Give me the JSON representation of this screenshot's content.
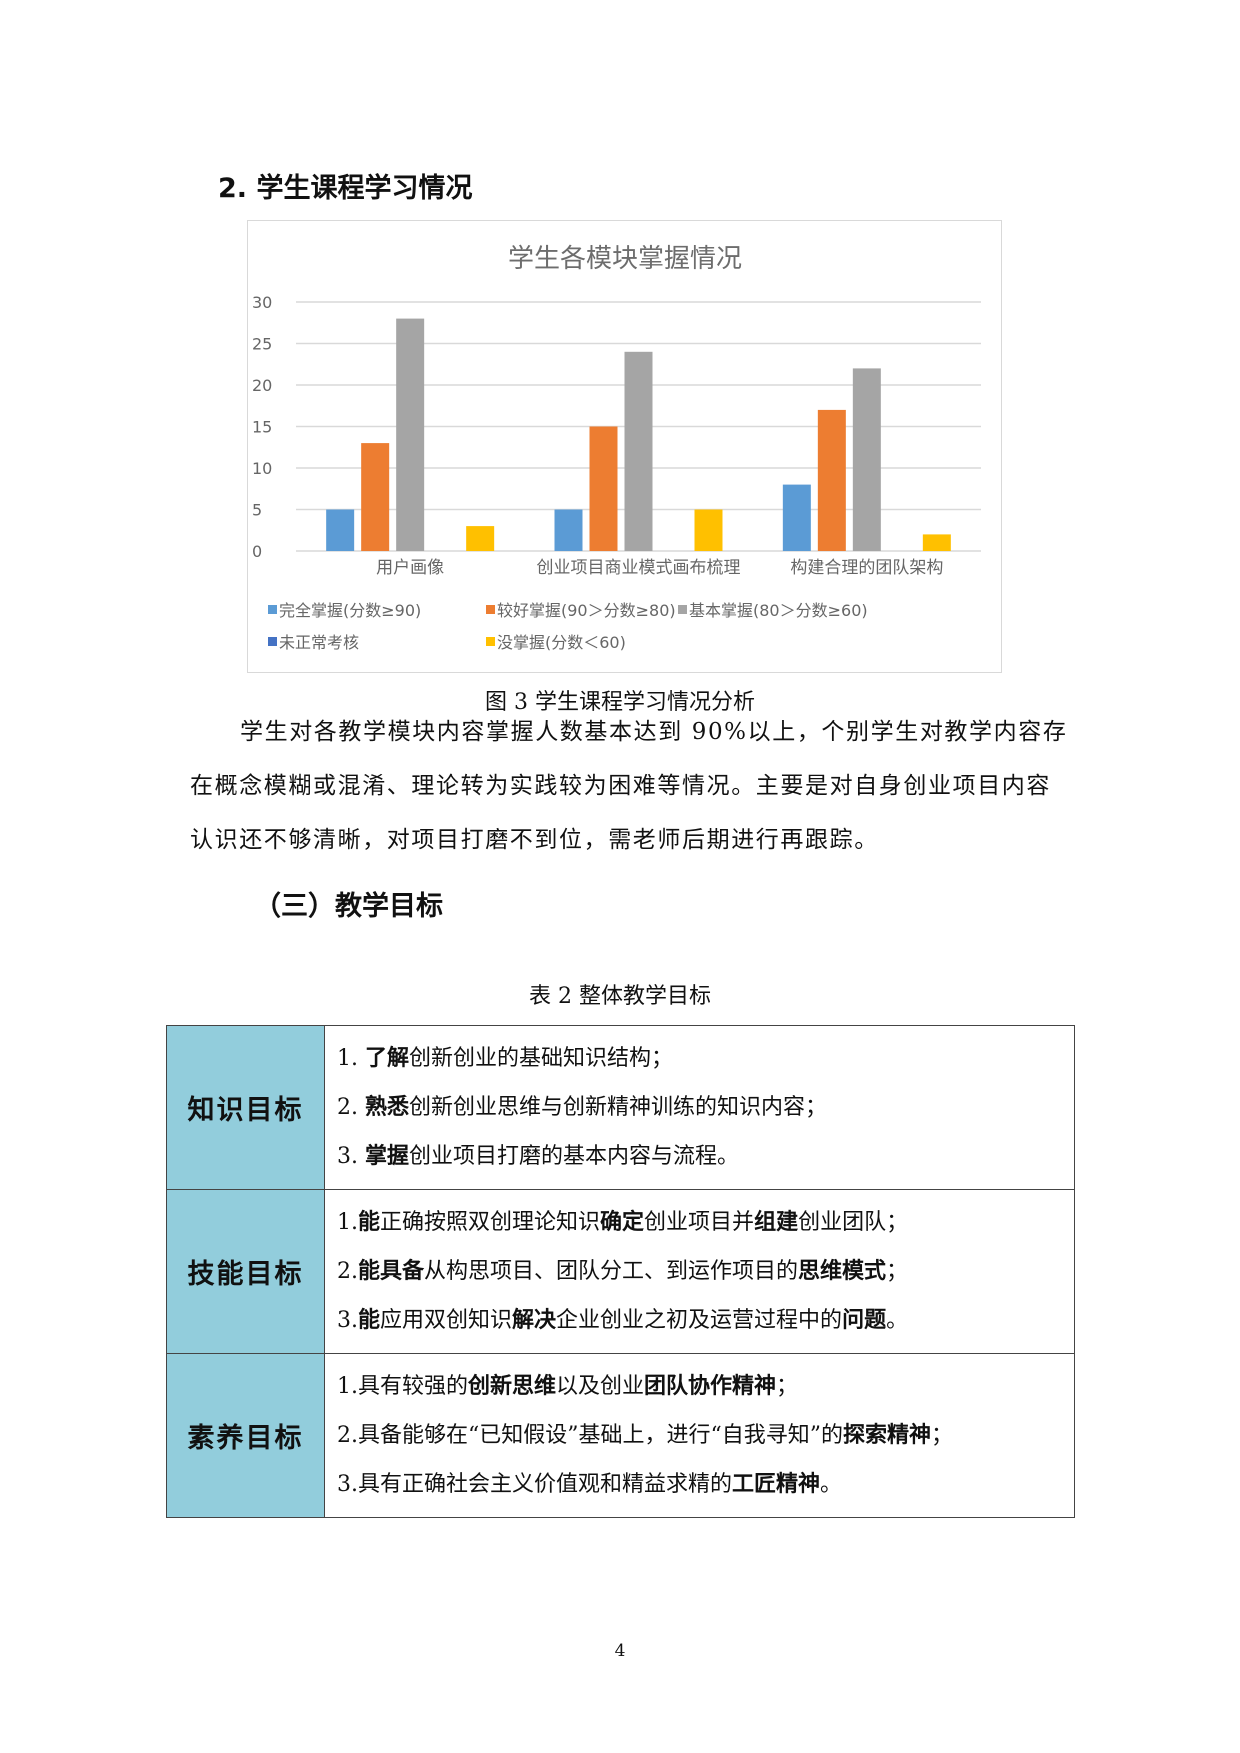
{
  "section_heading": "2. 学生课程学习情况",
  "chart_data": {
    "type": "bar",
    "title": "学生各模块掌握情况",
    "categories": [
      "用户画像",
      "创业项目商业模式画布梳理",
      "构建合理的团队架构"
    ],
    "series": [
      {
        "name": "完全掌握(分数≥90)",
        "color": "#5b9bd5",
        "values": [
          5,
          5,
          8
        ]
      },
      {
        "name": "较好掌握(90＞分数≥80)",
        "color": "#ed7d31",
        "values": [
          13,
          15,
          17
        ]
      },
      {
        "name": "基本掌握(80＞分数≥60)",
        "color": "#a5a5a5",
        "values": [
          28,
          24,
          22
        ]
      },
      {
        "name": "未正常考核",
        "color": "#4472c4",
        "values": [
          0,
          0,
          0
        ]
      },
      {
        "name": "没掌握(分数＜60)",
        "color": "#ffc000",
        "values": [
          3,
          5,
          2
        ]
      }
    ],
    "ylim": [
      0,
      30
    ],
    "yticks": [
      "0",
      "5",
      "10",
      "15",
      "20",
      "25",
      "30"
    ],
    "grid": true,
    "legend": "bottom"
  },
  "figure_caption": "图 3  学生课程学习情况分析",
  "paragraph": [
    "学生对各教学模块内容掌握人数基本达到 90%以上，个别学生对教学内容存",
    "在概念模糊或混淆、理论转为实践较为困难等情况。主要是对自身创业项目内容",
    "认识还不够清晰，对项目打磨不到位，需老师后期进行再跟踪。"
  ],
  "subsection_heading": "（三）教学目标",
  "table_caption": "表 2  整体教学目标",
  "goals": [
    {
      "category": "知识目标",
      "lines": [
        [
          {
            "t": "1.  "
          },
          {
            "t": "了解",
            "b": true
          },
          {
            "t": "创新创业的基础知识结构；"
          }
        ],
        [
          {
            "t": "2.  "
          },
          {
            "t": "熟悉",
            "b": true
          },
          {
            "t": "创新创业思维与创新精神训练的知识内容；"
          }
        ],
        [
          {
            "t": "3.  "
          },
          {
            "t": "掌握",
            "b": true
          },
          {
            "t": "创业项目打磨的基本内容与流程。"
          }
        ]
      ]
    },
    {
      "category": "技能目标",
      "lines": [
        [
          {
            "t": "1."
          },
          {
            "t": "能",
            "b": true
          },
          {
            "t": "正确按照双创理论知识"
          },
          {
            "t": "确定",
            "b": true
          },
          {
            "t": "创业项目并"
          },
          {
            "t": "组建",
            "b": true
          },
          {
            "t": "创业团队；"
          }
        ],
        [
          {
            "t": "2."
          },
          {
            "t": "能具备",
            "b": true
          },
          {
            "t": "从构思项目、团队分工、到运作项目的"
          },
          {
            "t": "思维模式",
            "b": true
          },
          {
            "t": "；"
          }
        ],
        [
          {
            "t": "3."
          },
          {
            "t": "能",
            "b": true
          },
          {
            "t": "应用双创知识"
          },
          {
            "t": "解决",
            "b": true
          },
          {
            "t": "企业创业之初及运营过程中的"
          },
          {
            "t": "问题",
            "b": true
          },
          {
            "t": "。"
          }
        ]
      ]
    },
    {
      "category": "素养目标",
      "lines": [
        [
          {
            "t": "1.具有较强的"
          },
          {
            "t": "创新思维",
            "b": true
          },
          {
            "t": "以及创业"
          },
          {
            "t": "团队协作精神",
            "b": true
          },
          {
            "t": "；"
          }
        ],
        [
          {
            "t": "2.具备能够在“已知假设”基础上，进行“自我寻知”的"
          },
          {
            "t": "探索精神",
            "b": true
          },
          {
            "t": "；"
          }
        ],
        [
          {
            "t": "3.具有正确社会主义价值观和精益求精的"
          },
          {
            "t": "工匠精神",
            "b": true
          },
          {
            "t": "。"
          }
        ]
      ]
    }
  ],
  "page_number": "4"
}
